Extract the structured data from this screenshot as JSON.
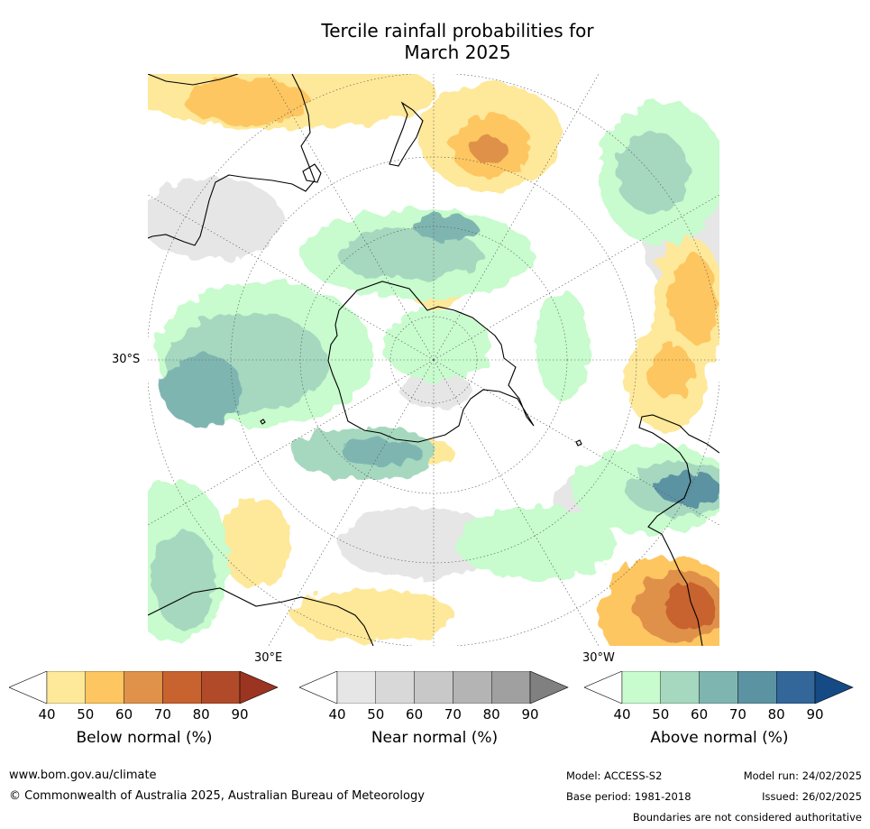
{
  "title": {
    "line1": "Tercile rainfall probabilities for",
    "line2": "March 2025"
  },
  "map": {
    "projection": "south-polar-stereographic",
    "lat_labels": [
      "30°S"
    ],
    "lon_labels": [
      "30°E",
      "30°W"
    ]
  },
  "colorbars": [
    {
      "label": "Below normal (%)",
      "ticks": [
        "40",
        "50",
        "60",
        "70",
        "80",
        "90"
      ],
      "colors": [
        "#ffffff",
        "#fee89a",
        "#fdc660",
        "#e0914a",
        "#c8622f",
        "#b04a29",
        "#9b3420"
      ]
    },
    {
      "label": "Near normal (%)",
      "ticks": [
        "40",
        "50",
        "60",
        "70",
        "80",
        "90"
      ],
      "colors": [
        "#ffffff",
        "#e6e6e6",
        "#d8d8d8",
        "#c8c8c8",
        "#b4b4b4",
        "#a0a0a0",
        "#808080"
      ]
    },
    {
      "label": "Above normal (%)",
      "ticks": [
        "40",
        "50",
        "60",
        "70",
        "80",
        "90"
      ],
      "colors": [
        "#ffffff",
        "#c8fbcd",
        "#a5d8bf",
        "#7fb5b1",
        "#5b93a3",
        "#336699",
        "#154a85"
      ]
    }
  ],
  "footer": {
    "website": "www.bom.gov.au/climate",
    "copyright": "© Commonwealth of Australia 2025, Australian Bureau of Meteorology",
    "model": "Model: ACCESS-S2",
    "base_period": "Base period: 1981-2018",
    "model_run": "Model run: 24/02/2025",
    "issued": "Issued: 26/02/2025",
    "disclaimer": "Boundaries are not considered authoritative"
  }
}
